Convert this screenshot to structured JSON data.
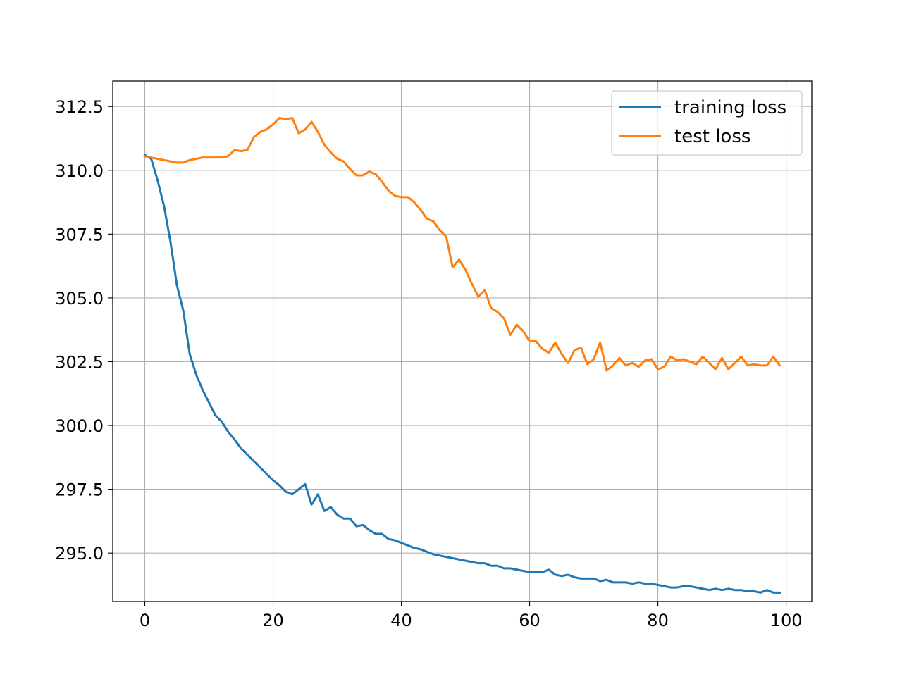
{
  "chart_data": {
    "type": "line",
    "title": "",
    "xlabel": "",
    "ylabel": "",
    "xlim": [
      -5,
      104
    ],
    "ylim": [
      293.1,
      313.5
    ],
    "xticks": [
      0,
      20,
      40,
      60,
      80,
      100
    ],
    "yticks": [
      295.0,
      297.5,
      300.0,
      302.5,
      305.0,
      307.5,
      310.0,
      312.5
    ],
    "xtick_labels": [
      "0",
      "20",
      "40",
      "60",
      "80",
      "100"
    ],
    "ytick_labels": [
      "295.0",
      "297.5",
      "300.0",
      "302.5",
      "305.0",
      "307.5",
      "310.0",
      "312.5"
    ],
    "grid": true,
    "legend_position": "top-right",
    "series": [
      {
        "name": "training loss",
        "color": "#1f77b4",
        "values": [
          310.6,
          310.45,
          309.6,
          308.6,
          307.2,
          305.5,
          304.5,
          302.8,
          302.0,
          301.4,
          300.9,
          300.4,
          300.15,
          299.75,
          299.45,
          299.1,
          298.85,
          298.6,
          298.35,
          298.1,
          297.85,
          297.65,
          297.4,
          297.3,
          297.5,
          297.7,
          296.9,
          297.3,
          296.65,
          296.8,
          296.5,
          296.35,
          296.35,
          296.05,
          296.1,
          295.9,
          295.75,
          295.75,
          295.55,
          295.5,
          295.4,
          295.3,
          295.2,
          295.15,
          295.05,
          294.95,
          294.9,
          294.85,
          294.8,
          294.75,
          294.7,
          294.65,
          294.6,
          294.6,
          294.5,
          294.5,
          294.4,
          294.4,
          294.35,
          294.3,
          294.25,
          294.25,
          294.25,
          294.35,
          294.15,
          294.1,
          294.15,
          294.05,
          294.0,
          294.0,
          294.0,
          293.9,
          293.95,
          293.85,
          293.85,
          293.85,
          293.8,
          293.85,
          293.8,
          293.8,
          293.75,
          293.7,
          293.65,
          293.65,
          293.7,
          293.7,
          293.65,
          293.6,
          293.55,
          293.6,
          293.55,
          293.6,
          293.55,
          293.55,
          293.5,
          293.5,
          293.45,
          293.55,
          293.45,
          293.45
        ]
      },
      {
        "name": "test loss",
        "color": "#ff7f0e",
        "values": [
          310.55,
          310.5,
          310.45,
          310.4,
          310.35,
          310.3,
          310.3,
          310.4,
          310.45,
          310.5,
          310.5,
          310.5,
          310.5,
          310.55,
          310.8,
          310.75,
          310.8,
          311.3,
          311.5,
          311.6,
          311.8,
          312.05,
          312.0,
          312.05,
          311.45,
          311.6,
          311.9,
          311.5,
          311.0,
          310.7,
          310.45,
          310.35,
          310.05,
          309.8,
          309.8,
          309.95,
          309.85,
          309.55,
          309.2,
          309.0,
          308.95,
          308.95,
          308.75,
          308.45,
          308.1,
          308.0,
          307.65,
          307.4,
          306.2,
          306.5,
          306.1,
          305.55,
          305.05,
          305.3,
          304.6,
          304.45,
          304.2,
          303.55,
          303.95,
          303.7,
          303.3,
          303.3,
          303.0,
          302.85,
          303.25,
          302.8,
          302.45,
          302.95,
          303.05,
          302.4,
          302.6,
          303.25,
          302.15,
          302.35,
          302.65,
          302.35,
          302.45,
          302.3,
          302.55,
          302.6,
          302.2,
          302.3,
          302.7,
          302.55,
          302.6,
          302.5,
          302.4,
          302.7,
          302.45,
          302.2,
          302.65,
          302.2,
          302.45,
          302.7,
          302.35,
          302.4,
          302.35,
          302.35,
          302.7,
          302.35
        ]
      }
    ]
  }
}
